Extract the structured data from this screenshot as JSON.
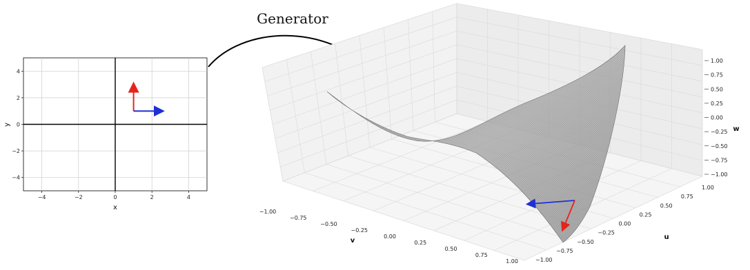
{
  "caption": "Generator",
  "plot2d": {
    "xlabel": "x",
    "ylabel": "y",
    "xlim": [
      -5,
      5
    ],
    "ylim": [
      -5,
      5
    ],
    "xticks": [
      -4,
      -2,
      0,
      2,
      4
    ],
    "yticks": [
      -4,
      -2,
      0,
      2,
      4
    ],
    "xtick_labels": [
      "−4",
      "−2",
      "0",
      "2",
      "4"
    ],
    "ytick_labels": [
      "−4",
      "−2",
      "0",
      "2",
      "4"
    ],
    "grid": true,
    "origin_point": [
      1,
      1
    ],
    "red_vector": [
      0,
      1.8
    ],
    "blue_vector": [
      1.4,
      0
    ]
  },
  "plot3d": {
    "axis_labels": {
      "u": "u",
      "v": "v",
      "w": "w"
    },
    "w_ticks": [
      "1.00",
      "0.75",
      "0.50",
      "0.25",
      "0.00",
      "−0.25",
      "−0.50",
      "−0.75",
      "−1.00"
    ],
    "u_ticks": [
      "1.00",
      "0.75",
      "0.50",
      "0.25",
      "0.00",
      "−0.25",
      "−0.50",
      "−0.75",
      "−1.00"
    ],
    "v_ticks": [
      "−1.00",
      "−0.75",
      "−0.50",
      "−0.25",
      "0.00",
      "0.25",
      "0.50",
      "0.75",
      "1.00"
    ],
    "surface": "saddle"
  },
  "colors": {
    "red": "#e8231b",
    "blue": "#1f2fd6",
    "grid": "#cccccc",
    "pane": "#f2f2f2",
    "surface": "#8a8a8a"
  }
}
